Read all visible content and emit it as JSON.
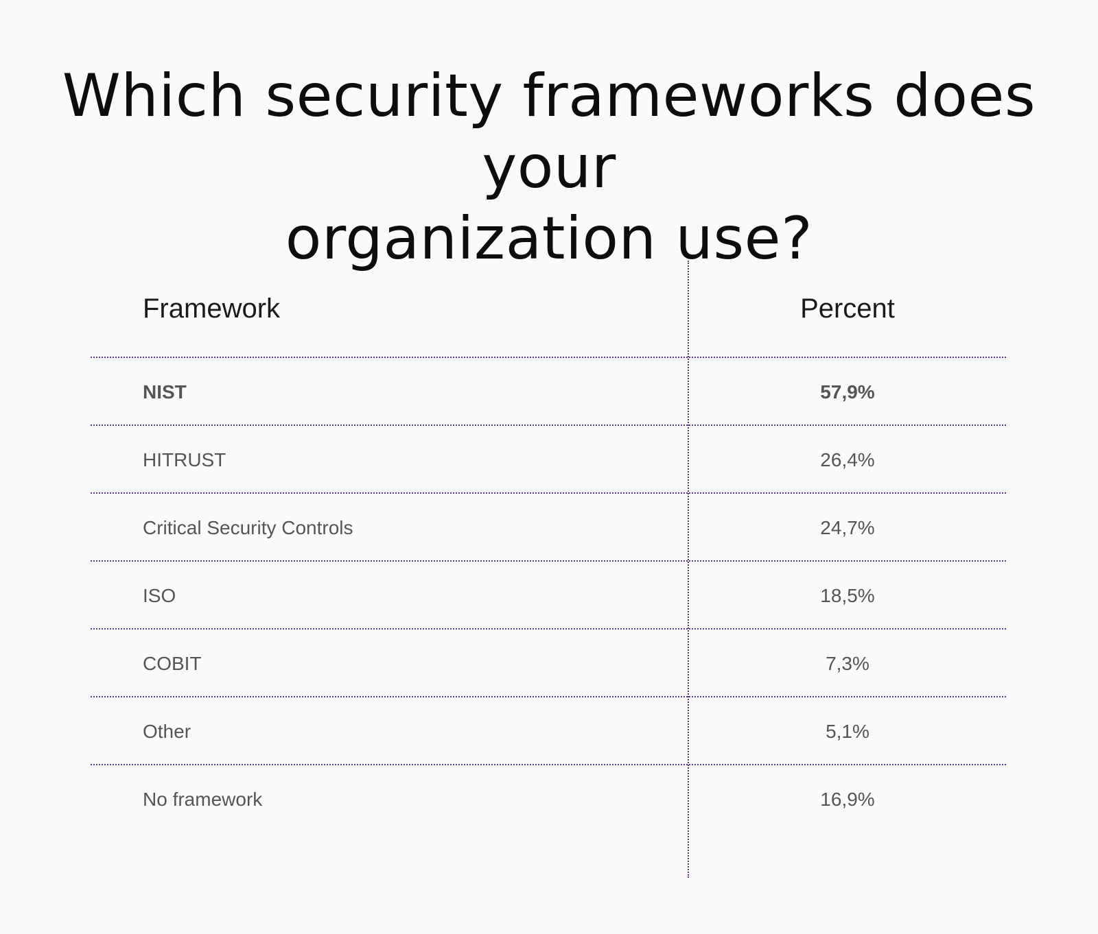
{
  "chart_data": {
    "type": "table",
    "title_lines": [
      "Which security frameworks does your",
      "organization use?"
    ],
    "columns": [
      "Framework",
      "Percent"
    ],
    "rows": [
      {
        "framework": "NIST",
        "percent_label": "57,9%",
        "percent": 57.9,
        "bold": true
      },
      {
        "framework": "HITRUST",
        "percent_label": "26,4%",
        "percent": 26.4,
        "bold": false
      },
      {
        "framework": "Critical Security Controls",
        "percent_label": "24,7%",
        "percent": 24.7,
        "bold": false
      },
      {
        "framework": "ISO",
        "percent_label": "18,5%",
        "percent": 18.5,
        "bold": false
      },
      {
        "framework": "COBIT",
        "percent_label": "7,3%",
        "percent": 7.3,
        "bold": false
      },
      {
        "framework": "Other",
        "percent_label": "5,1%",
        "percent": 5.1,
        "bold": false
      },
      {
        "framework": "No framework",
        "percent_label": "16,9%",
        "percent": 16.9,
        "bold": false
      }
    ]
  },
  "colors": {
    "background": "#fafafc",
    "title": "#0d0d0d",
    "header_text": "#1a1a1a",
    "body_text": "#555555",
    "divider": "#5a3a86"
  }
}
